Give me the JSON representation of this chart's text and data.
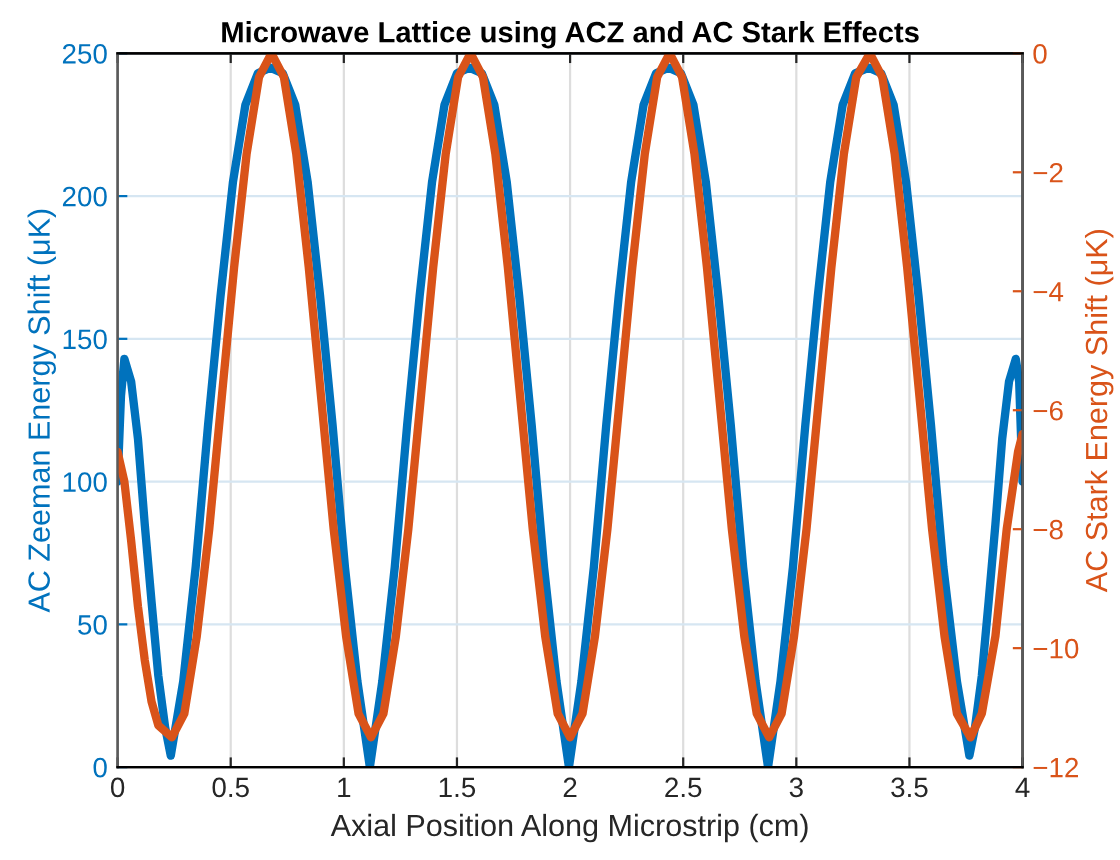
{
  "chart_data": {
    "type": "line",
    "title": "Microwave Lattice using ACZ and AC Stark Effects",
    "xlabel": "Axial Position Along Microstrip (cm)",
    "ylabel": "AC Zeeman Energy Shift (μK)",
    "y2label": "AC Stark Energy Shift (μK)",
    "xlim": [
      0,
      4
    ],
    "xticks": [
      0,
      0.5,
      1,
      1.5,
      2,
      2.5,
      3,
      3.5,
      4
    ],
    "ylim": [
      0,
      250
    ],
    "yticks": [
      0,
      50,
      100,
      150,
      200,
      250
    ],
    "y2lim": [
      -12,
      0
    ],
    "y2ticks": [
      -12,
      -10,
      -8,
      -6,
      -4,
      -2,
      0
    ],
    "grid": true,
    "line_style": "solid",
    "series": [
      {
        "color": "#0072bd",
        "axis": "y",
        "x": [
          0,
          0.015,
          0.03,
          0.06,
          0.09,
          0.12,
          0.15,
          0.18,
          0.21,
          0.235,
          0.29,
          0.345,
          0.4,
          0.455,
          0.51,
          0.565,
          0.62,
          0.675,
          0.73,
          0.785,
          0.84,
          0.895,
          0.95,
          1.005,
          1.06,
          1.115,
          1.17,
          1.225,
          1.28,
          1.335,
          1.39,
          1.445,
          1.5,
          1.555,
          1.61,
          1.665,
          1.72,
          1.775,
          1.83,
          1.885,
          1.94,
          1.995,
          2.05,
          2.105,
          2.16,
          2.215,
          2.27,
          2.325,
          2.38,
          2.435,
          2.49,
          2.545,
          2.6,
          2.655,
          2.71,
          2.765,
          2.82,
          2.875,
          2.93,
          2.985,
          3.04,
          3.095,
          3.15,
          3.205,
          3.26,
          3.32,
          3.375,
          3.43,
          3.485,
          3.54,
          3.595,
          3.65,
          3.71,
          3.765,
          3.79,
          3.82,
          3.85,
          3.88,
          3.91,
          3.94,
          3.97,
          3.985,
          4.0
        ],
        "values": [
          100,
          130,
          143,
          135,
          115,
          85,
          58,
          32,
          14,
          4,
          30,
          70,
          120,
          165,
          205,
          232,
          243,
          245,
          243,
          232,
          205,
          165,
          120,
          70,
          30,
          0,
          30,
          70,
          120,
          165,
          205,
          232,
          243,
          245,
          243,
          232,
          205,
          165,
          120,
          70,
          30,
          0,
          30,
          70,
          120,
          165,
          205,
          232,
          243,
          245,
          243,
          232,
          205,
          165,
          120,
          70,
          30,
          0,
          30,
          70,
          120,
          165,
          205,
          232,
          243,
          245,
          243,
          232,
          205,
          165,
          120,
          70,
          30,
          4,
          14,
          32,
          58,
          85,
          115,
          135,
          143,
          135,
          100
        ]
      },
      {
        "color": "#d95319",
        "axis": "y2",
        "x": [
          0,
          0.03,
          0.06,
          0.09,
          0.12,
          0.15,
          0.18,
          0.24,
          0.295,
          0.35,
          0.405,
          0.46,
          0.515,
          0.57,
          0.625,
          0.68,
          0.735,
          0.79,
          0.845,
          0.9,
          0.955,
          1.01,
          1.065,
          1.12,
          1.175,
          1.23,
          1.285,
          1.34,
          1.395,
          1.45,
          1.505,
          1.56,
          1.615,
          1.67,
          1.725,
          1.78,
          1.835,
          1.89,
          1.945,
          2.0,
          2.055,
          2.11,
          2.165,
          2.22,
          2.275,
          2.33,
          2.385,
          2.44,
          2.495,
          2.55,
          2.605,
          2.66,
          2.715,
          2.77,
          2.825,
          2.88,
          2.935,
          2.99,
          3.045,
          3.1,
          3.155,
          3.21,
          3.265,
          3.325,
          3.38,
          3.435,
          3.49,
          3.545,
          3.6,
          3.655,
          3.71,
          3.77,
          3.82,
          3.88,
          3.93,
          3.98,
          4.0
        ],
        "values": [
          -6.7,
          -7.2,
          -8.2,
          -9.3,
          -10.2,
          -10.9,
          -11.3,
          -11.5,
          -11.1,
          -9.8,
          -8,
          -5.8,
          -3.6,
          -1.7,
          -0.4,
          0,
          -0.4,
          -1.7,
          -3.6,
          -5.8,
          -8,
          -9.8,
          -11.1,
          -11.5,
          -11.1,
          -9.8,
          -8,
          -5.8,
          -3.6,
          -1.7,
          -0.4,
          0,
          -0.4,
          -1.7,
          -3.6,
          -5.8,
          -8,
          -9.8,
          -11.1,
          -11.5,
          -11.1,
          -9.8,
          -8,
          -5.8,
          -3.6,
          -1.7,
          -0.4,
          0,
          -0.4,
          -1.7,
          -3.6,
          -5.8,
          -8,
          -9.8,
          -11.1,
          -11.5,
          -11.1,
          -9.8,
          -8,
          -5.8,
          -3.6,
          -1.7,
          -0.4,
          0,
          -0.4,
          -1.7,
          -3.6,
          -5.8,
          -8,
          -9.8,
          -11.1,
          -11.5,
          -11.1,
          -9.8,
          -8,
          -6.7,
          -6.4
        ]
      }
    ]
  }
}
